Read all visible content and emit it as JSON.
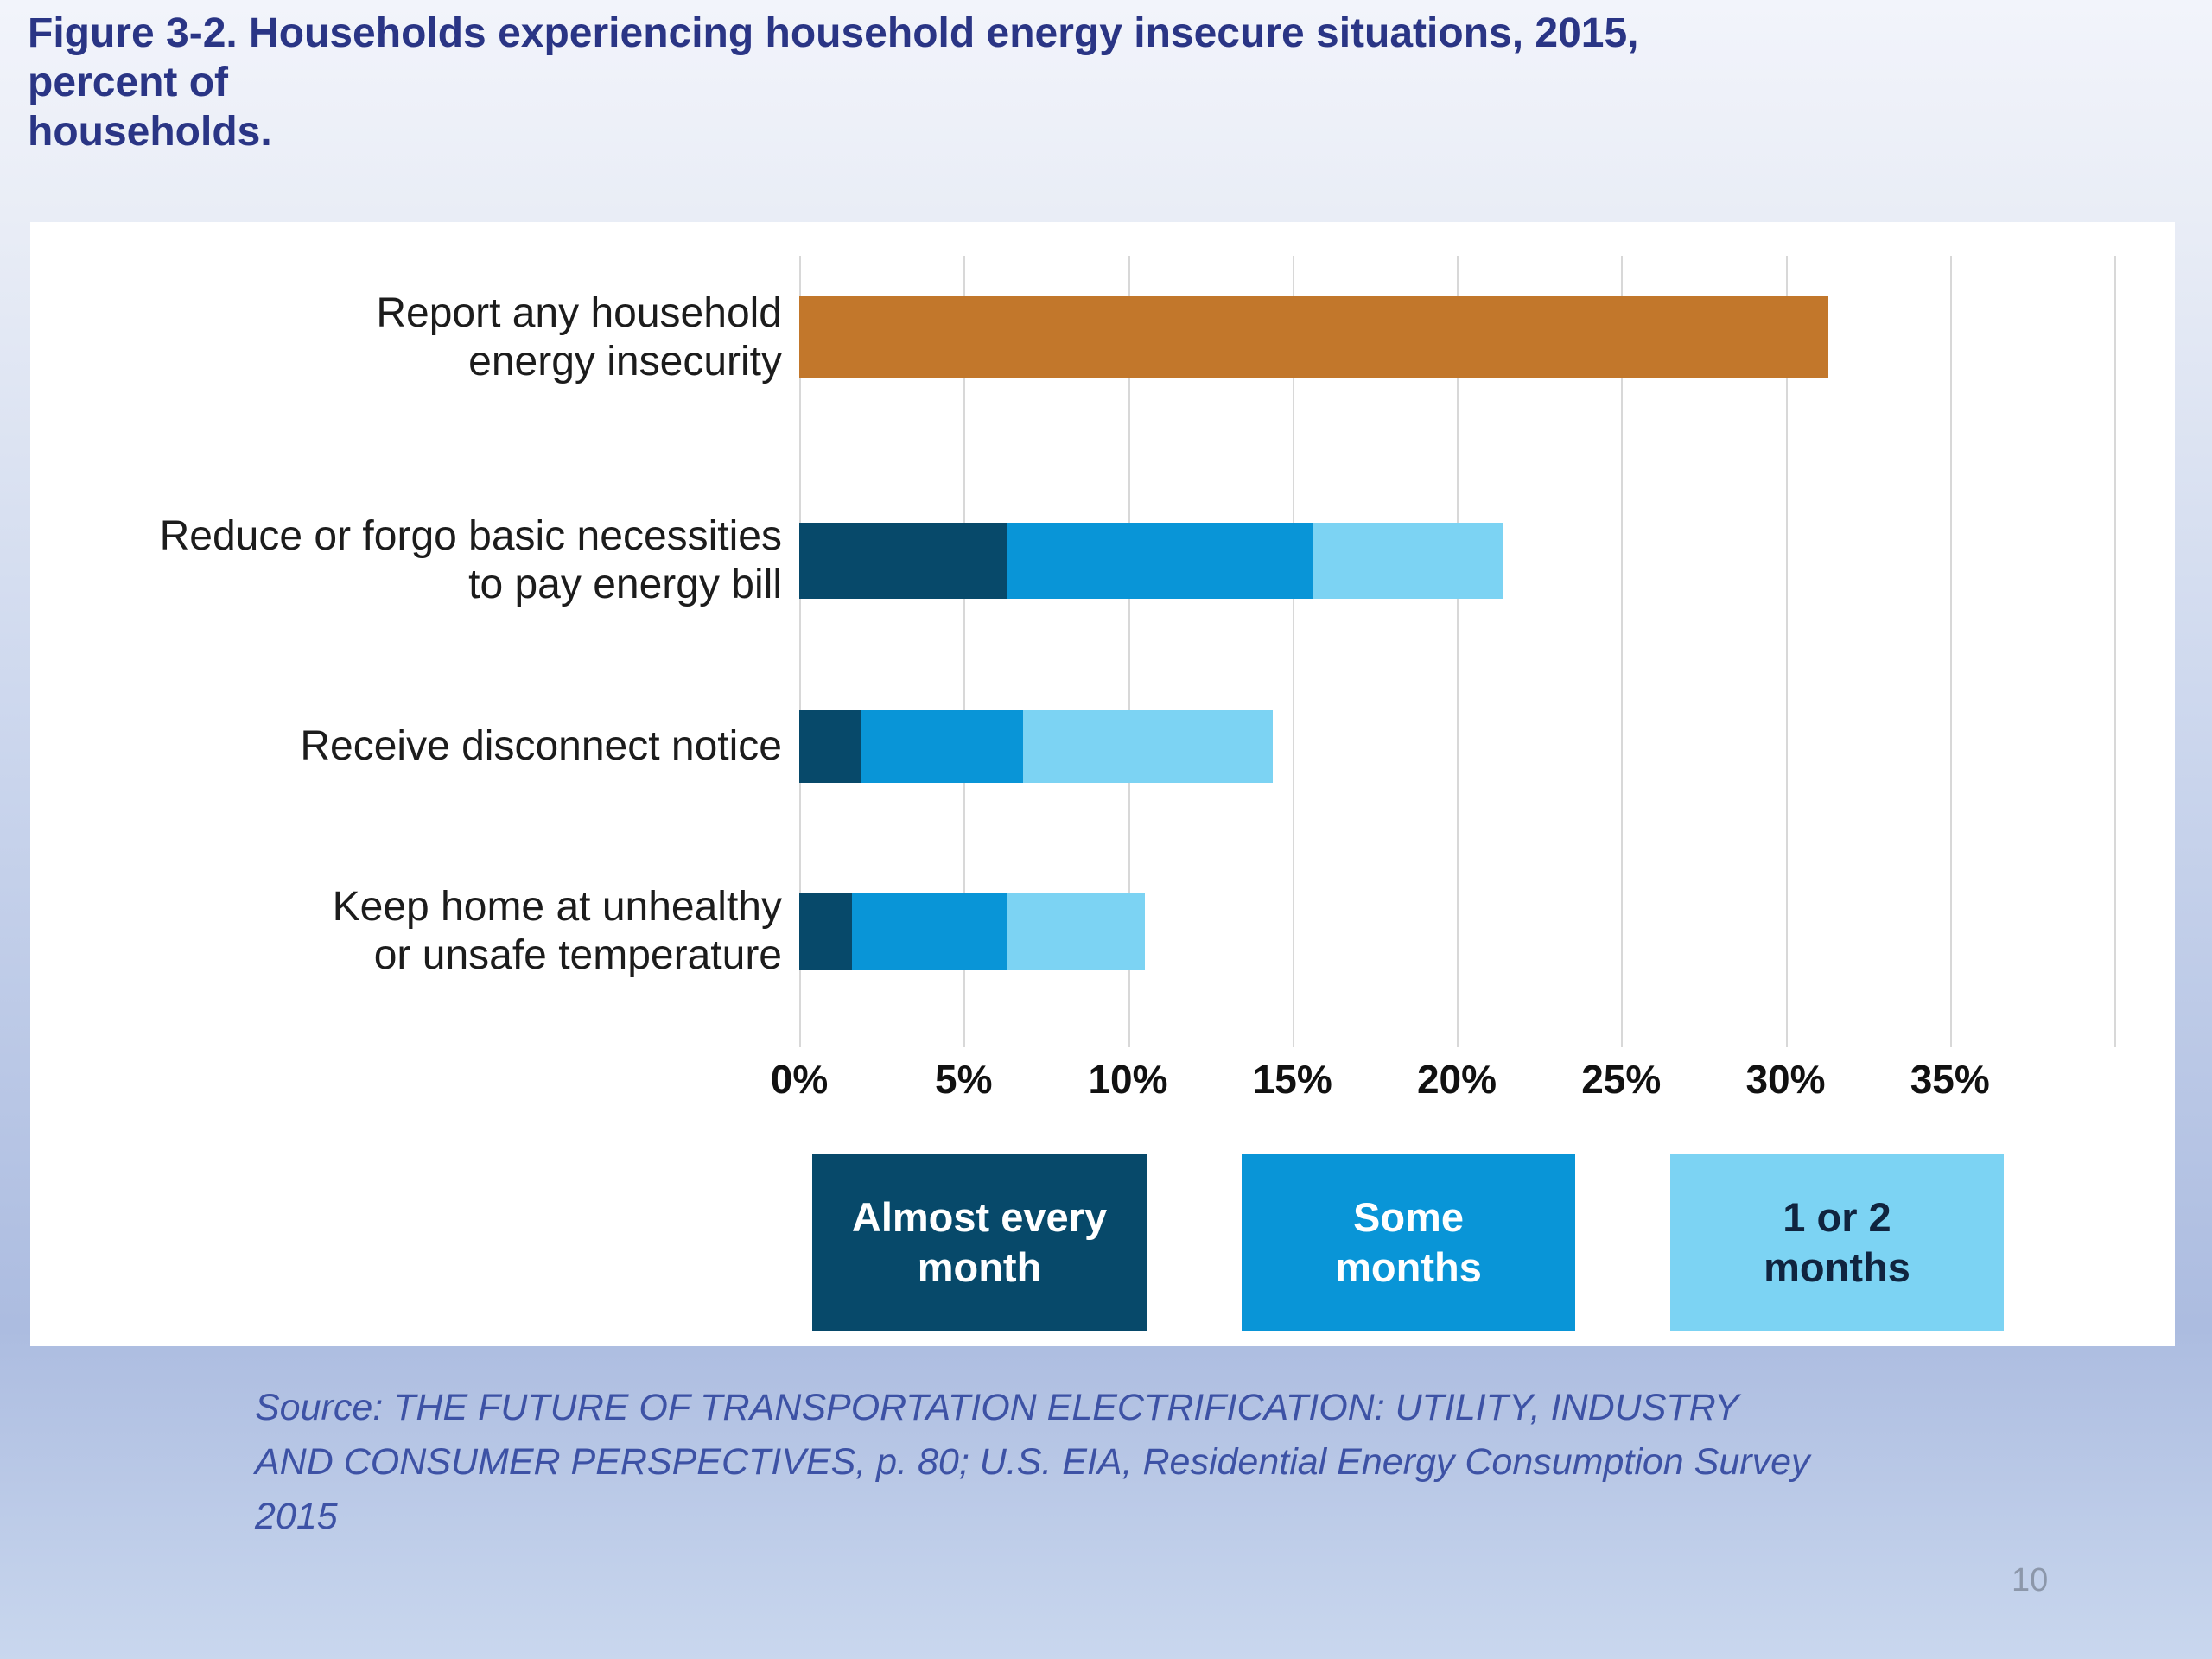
{
  "slide": {
    "title_lines": [
      "Figure 3-2. Households experiencing household energy insecure situations, 2015,",
      "percent of",
      "households."
    ],
    "source_lines": [
      "Source: THE FUTURE OF TRANSPORTATION ELECTRIFICATION: UTILITY, INDUSTRY",
      "AND CONSUMER PERSPECTIVES, p. 80; U.S. EIA, Residential Energy Consumption Survey",
      "2015"
    ],
    "page_number": "10",
    "colors": {
      "title_text": "#2A3585",
      "source_text": "#3D52A5",
      "page_number_text": "#8C97AA",
      "panel_background": "#FFFFFF",
      "slide_background_top": "#F2F4FB",
      "slide_background_bottom": "#C9D7EE",
      "gridline": "#D8D8D8"
    }
  },
  "chart_data": {
    "type": "bar",
    "orientation": "horizontal",
    "stacked": true,
    "unit": "percent of households",
    "grid": true,
    "x_axis": {
      "min": 0,
      "max": 40,
      "gridline_step": 5,
      "gridline_count": 9,
      "tick_labels": [
        "0%",
        "5%",
        "10%",
        "15%",
        "20%",
        "25%",
        "30%",
        "35%"
      ]
    },
    "colors": {
      "any_insecurity": "#C2772B",
      "almost_every_month": "#07496A",
      "some_months": "#0995D7",
      "one_or_two_months": "#7CD3F3"
    },
    "rows": [
      {
        "label_lines": [
          "Report any household",
          "energy insecurity"
        ],
        "segments": [
          {
            "series": "any_insecurity",
            "value": 31.3
          }
        ],
        "total": 31.3
      },
      {
        "label_lines": [
          "Reduce or forgo basic necessities",
          "to pay energy bill"
        ],
        "segments": [
          {
            "series": "almost_every_month",
            "value": 6.3
          },
          {
            "series": "some_months",
            "value": 9.3
          },
          {
            "series": "one_or_two_months",
            "value": 5.8
          }
        ],
        "total": 21.4
      },
      {
        "label_lines": [
          "Receive disconnect notice"
        ],
        "segments": [
          {
            "series": "almost_every_month",
            "value": 1.9
          },
          {
            "series": "some_months",
            "value": 4.9
          },
          {
            "series": "one_or_two_months",
            "value": 7.6
          }
        ],
        "total": 14.4
      },
      {
        "label_lines": [
          "Keep home at unhealthy",
          "or unsafe temperature"
        ],
        "segments": [
          {
            "series": "almost_every_month",
            "value": 1.6
          },
          {
            "series": "some_months",
            "value": 4.7
          },
          {
            "series": "one_or_two_months",
            "value": 4.2
          }
        ],
        "total": 10.5
      }
    ],
    "legend": [
      {
        "lines": [
          "Almost every",
          "month"
        ],
        "color_key": "almost_every_month",
        "fill": "#07496A",
        "text_color": "#FFFFFF"
      },
      {
        "lines": [
          "Some",
          "months"
        ],
        "color_key": "some_months",
        "fill": "#0995D7",
        "text_color": "#FFFFFF"
      },
      {
        "lines": [
          "1 or 2",
          "months"
        ],
        "color_key": "one_or_two_months",
        "fill": "#7CD3F3",
        "text_color": "#10243F"
      }
    ],
    "legend_position": "bottom",
    "title": "Figure 3-2. Households experiencing household energy insecure situations, 2015, percent of households."
  }
}
